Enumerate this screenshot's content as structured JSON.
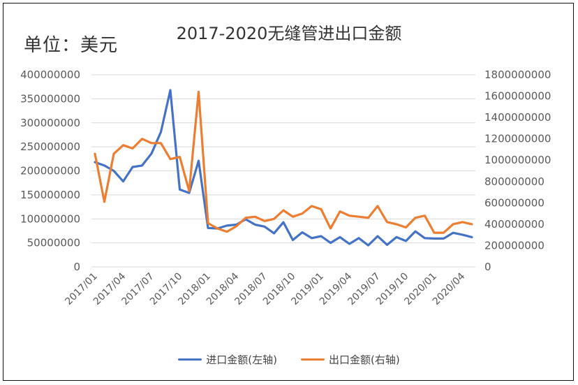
{
  "unit_label": "单位：美元",
  "chart_data": {
    "type": "line",
    "title": "2017-2020无缝管进出口金额",
    "categories": [
      "2017/01",
      "2017/02",
      "2017/03",
      "2017/04",
      "2017/05",
      "2017/06",
      "2017/07",
      "2017/08",
      "2017/09",
      "2017/10",
      "2017/11",
      "2017/12",
      "2018/01",
      "2018/02",
      "2018/03",
      "2018/04",
      "2018/05",
      "2018/06",
      "2018/07",
      "2018/08",
      "2018/09",
      "2018/10",
      "2018/11",
      "2018/12",
      "2019/01",
      "2019/02",
      "2019/03",
      "2019/04",
      "2019/05",
      "2019/06",
      "2019/07",
      "2019/08",
      "2019/09",
      "2019/10",
      "2019/11",
      "2019/12",
      "2020/01",
      "2020/02",
      "2020/03",
      "2020/04",
      "2020/05"
    ],
    "x_tick_labels": [
      "2017/01",
      "2017/04",
      "2017/07",
      "2017/10",
      "2018/01",
      "2018/04",
      "2018/07",
      "2018/10",
      "2019/01",
      "2019/04",
      "2019/07",
      "2019/10",
      "2020/01",
      "2020/04"
    ],
    "left_axis": {
      "min": 0,
      "max": 400000000,
      "step": 50000000,
      "ticks": [
        "0",
        "50000000",
        "100000000",
        "150000000",
        "200000000",
        "250000000",
        "300000000",
        "350000000",
        "400000000"
      ]
    },
    "right_axis": {
      "min": 0,
      "max": 1800000000,
      "step": 200000000,
      "ticks": [
        "0",
        "200000000",
        "400000000",
        "600000000",
        "800000000",
        "1000000000",
        "1200000000",
        "1400000000",
        "1600000000",
        "1800000000"
      ]
    },
    "grid": true,
    "legend_position": "bottom",
    "series": [
      {
        "name": "进口金额(左轴)",
        "axis": "left",
        "color": "#4472C4",
        "values": [
          218000000,
          211000000,
          200000000,
          178000000,
          208000000,
          211000000,
          236000000,
          281000000,
          368000000,
          161000000,
          154000000,
          221000000,
          81000000,
          80000000,
          86000000,
          88000000,
          99000000,
          88000000,
          84000000,
          70000000,
          93000000,
          56000000,
          72000000,
          60000000,
          64000000,
          50000000,
          62000000,
          48000000,
          60000000,
          45000000,
          64000000,
          46000000,
          62000000,
          54000000,
          74000000,
          60000000,
          59000000,
          59000000,
          71000000,
          67000000,
          62000000
        ]
      },
      {
        "name": "出口金额(右轴)",
        "axis": "right",
        "color": "#ED7D31",
        "values": [
          1060000000,
          610000000,
          1060000000,
          1140000000,
          1110000000,
          1200000000,
          1160000000,
          1160000000,
          1010000000,
          1030000000,
          710000000,
          1640000000,
          410000000,
          360000000,
          330000000,
          380000000,
          460000000,
          470000000,
          430000000,
          450000000,
          530000000,
          470000000,
          500000000,
          570000000,
          540000000,
          360000000,
          520000000,
          480000000,
          470000000,
          460000000,
          570000000,
          420000000,
          400000000,
          370000000,
          460000000,
          480000000,
          320000000,
          320000000,
          400000000,
          420000000,
          400000000
        ]
      }
    ]
  }
}
